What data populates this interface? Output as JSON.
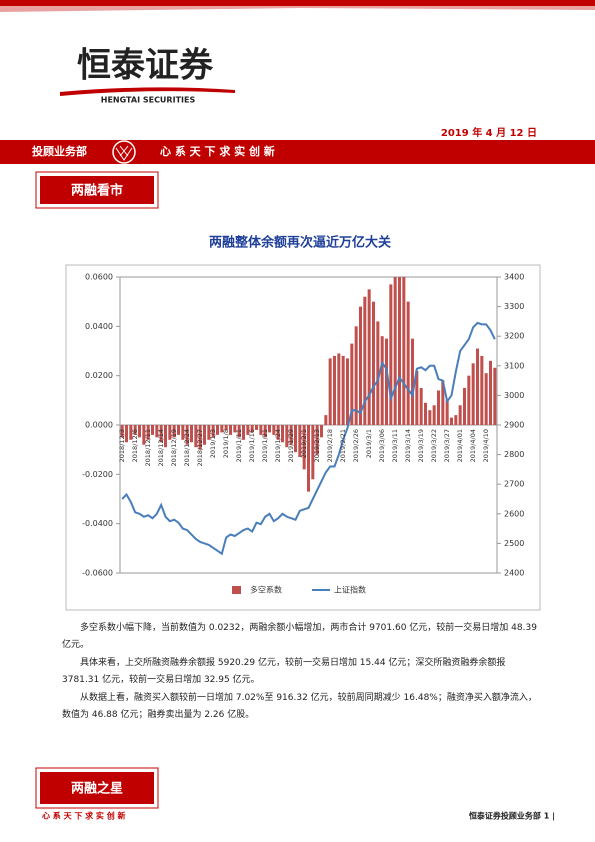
{
  "header": {
    "logo_cn": "恒泰证券",
    "logo_en": "HENGTAI SECURITIES",
    "date": "2019 年 4 月 12 日",
    "department": "投顾业务部",
    "slogan": "心 系 天 下    求 实 创 新"
  },
  "section1": "两融看市",
  "chart_data": {
    "type": "bar-line",
    "title": "两融整体余额再次逼近万亿大关",
    "categories": [
      "2018/12/3",
      null,
      null,
      "2018/12/6",
      null,
      null,
      "2018/12/11",
      null,
      null,
      "2018/12/14",
      null,
      null,
      "2018/12/19",
      null,
      null,
      "2018/12/24",
      null,
      null,
      "2018/12/27",
      null,
      null,
      "2019/1/3",
      null,
      null,
      "2019/1/8",
      null,
      null,
      "2019/1/11",
      null,
      null,
      "2019/1/16",
      null,
      null,
      "2019/1/21",
      null,
      null,
      "2019/1/24",
      null,
      null,
      "2019/1/29",
      null,
      null,
      "2019/2/1",
      null,
      null,
      "2019/2/13",
      null,
      null,
      "2019/2/18",
      null,
      null,
      "2019/2/21",
      null,
      null,
      "2019/2/26",
      null,
      null,
      "2019/3/1",
      null,
      null,
      "2019/3/06",
      null,
      null,
      "2019/3/11",
      null,
      null,
      "2019/3/14",
      null,
      null,
      "2019/3/19",
      null,
      null,
      "2019/3/22",
      null,
      null,
      "2019/3/27",
      null,
      null,
      "2019/4/01",
      null,
      null,
      "2019/4/04",
      null,
      null,
      "2019/4/10",
      null,
      null
    ],
    "series": [
      {
        "name": "多空系数",
        "color": "#c0504d",
        "values": [
          -0.005,
          -0.007,
          -0.006,
          -0.004,
          -0.005,
          -0.008,
          -0.006,
          -0.004,
          -0.005,
          -0.007,
          -0.009,
          -0.006,
          -0.005,
          -0.004,
          -0.006,
          -0.008,
          -0.007,
          -0.009,
          -0.01,
          -0.008,
          -0.006,
          -0.005,
          -0.004,
          -0.003,
          -0.002,
          -0.004,
          -0.003,
          -0.005,
          -0.006,
          -0.004,
          -0.003,
          -0.002,
          -0.004,
          -0.005,
          -0.003,
          -0.004,
          -0.006,
          -0.007,
          -0.009,
          -0.008,
          -0.011,
          -0.013,
          -0.018,
          -0.027,
          -0.022,
          -0.012,
          -0.005,
          0.004,
          0.027,
          0.028,
          0.029,
          0.028,
          0.027,
          0.033,
          0.04,
          0.048,
          0.052,
          0.055,
          0.05,
          0.042,
          0.036,
          0.035,
          0.057,
          0.06,
          0.06,
          0.06,
          0.05,
          0.035,
          0.022,
          0.015,
          0.009,
          0.006,
          0.008,
          0.014,
          0.018,
          0.01,
          0.003,
          0.004,
          0.008,
          0.015,
          0.02,
          0.025,
          0.031,
          0.028,
          0.021,
          0.026,
          0.0232
        ]
      },
      {
        "name": "上证指数",
        "color": "#4a7ebb",
        "axis": "y2",
        "values": [
          2650,
          2665,
          2640,
          2605,
          2600,
          2590,
          2595,
          2585,
          2600,
          2630,
          2590,
          2575,
          2580,
          2570,
          2550,
          2545,
          2530,
          2515,
          2505,
          2500,
          2495,
          2485,
          2475,
          2465,
          2520,
          2530,
          2525,
          2535,
          2545,
          2550,
          2540,
          2570,
          2565,
          2590,
          2600,
          2575,
          2585,
          2600,
          2590,
          2585,
          2580,
          2610,
          2615,
          2620,
          2650,
          2680,
          2710,
          2740,
          2760,
          2760,
          2800,
          2850,
          2890,
          2950,
          2950,
          2940,
          2980,
          3000,
          3030,
          3050,
          3110,
          3090,
          2990,
          3025,
          3060,
          3040,
          3020,
          3000,
          3090,
          3095,
          3085,
          3100,
          3100,
          3055,
          3050,
          2980,
          3000,
          3080,
          3150,
          3170,
          3190,
          3230,
          3245,
          3240,
          3240,
          3220,
          3190
        ]
      }
    ],
    "ylim": [
      -0.06,
      0.06
    ],
    "yticks": [
      {
        "value": -0.06,
        "label": "-0.0600"
      },
      {
        "value": -0.04,
        "label": "-0.0400"
      },
      {
        "value": -0.02,
        "label": "-0.0200"
      },
      {
        "value": 0,
        "label": "0.0000"
      },
      {
        "value": 0.02,
        "label": "0.0200"
      },
      {
        "value": 0.04,
        "label": "0.0400"
      },
      {
        "value": 0.06,
        "label": "0.0600"
      }
    ],
    "y2lim": [
      2400,
      3400
    ],
    "y2ticks": [
      2400,
      2500,
      2600,
      2700,
      2800,
      2900,
      3000,
      3100,
      3200,
      3300,
      3400
    ],
    "grid": false
  },
  "paragraphs": [
    "多空系数小幅下降，当前数值为 0.0232，两融余额小幅增加，两市合计 9701.60 亿元，较前一交易日增加 48.39 亿元。",
    "具体来看，上交所融资融券余额报 5920.29 亿元，较前一交易日增加 15.44 亿元；深交所融资融券余额报 3781.31 亿元，较前一交易日增加 32.95 亿元。",
    "从数据上看，融资买入额较前一日增加 7.02%至 916.32 亿元，较前周同期减少 16.48%；融资净买入额净流入，数值为 46.88 亿元；融券卖出量为 2.26 亿股。"
  ],
  "footer": {
    "section": "两融之星",
    "slogan": "心 系 天 下    求 实 创 新",
    "page": "恒泰证券投顾业务部 1 |"
  }
}
